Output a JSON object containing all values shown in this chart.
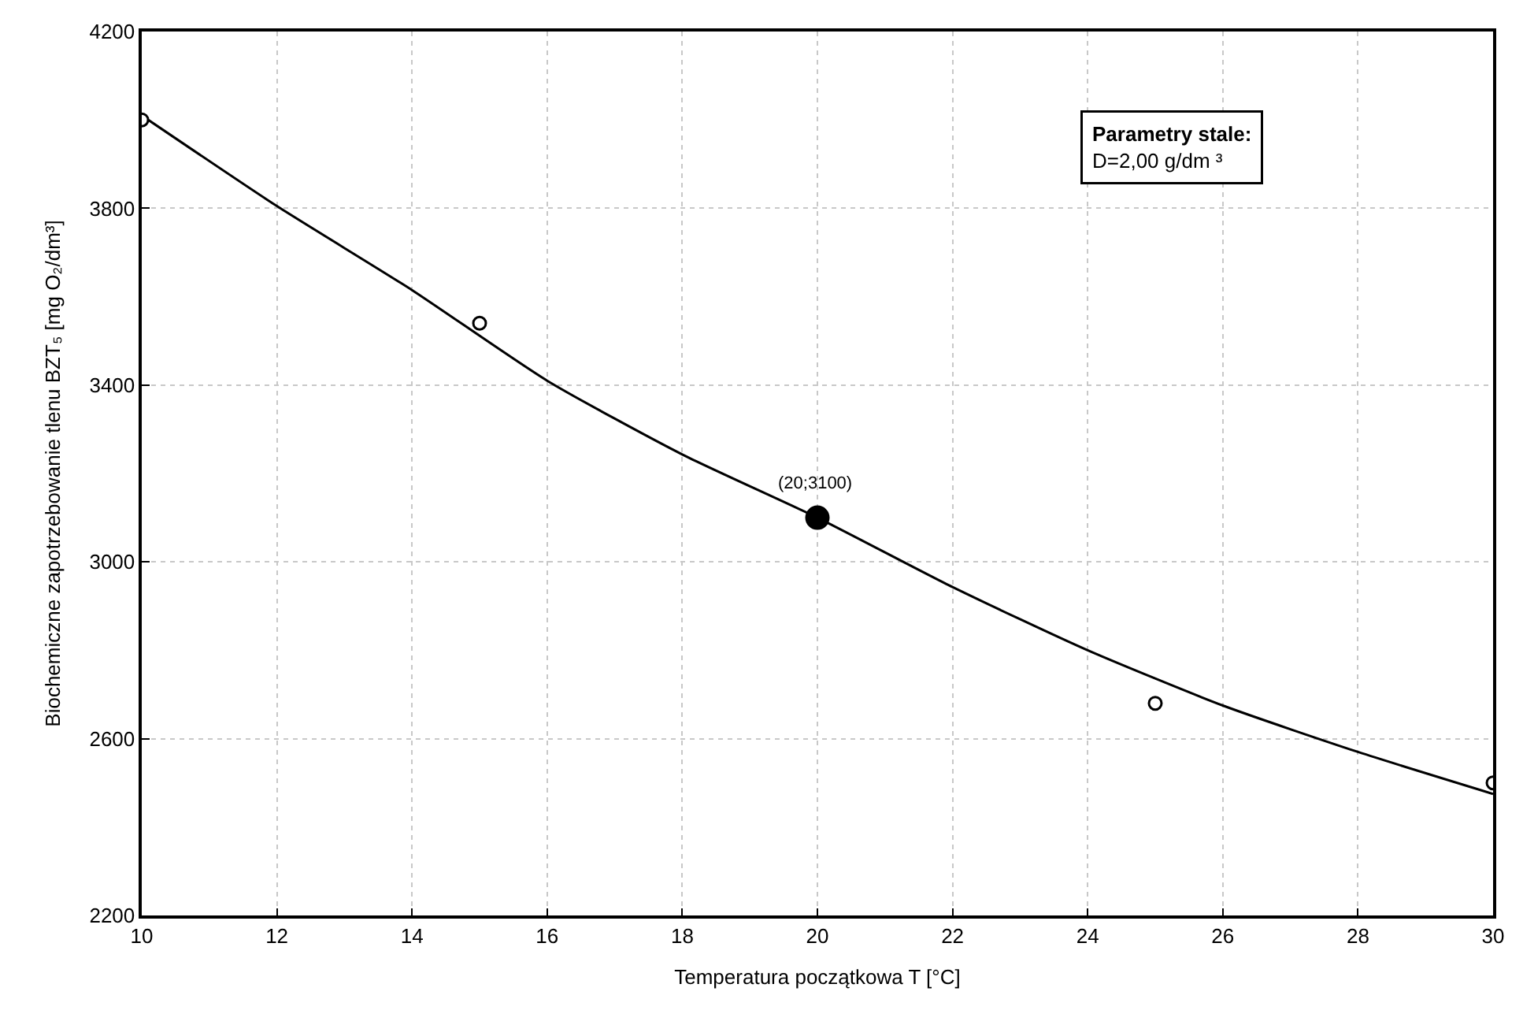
{
  "chart_data": {
    "type": "scatter",
    "xlabel": "Temperatura początkowa T [°C]",
    "ylabel": "Biochemiczne zapotrzebowanie tlenu BZT₅ [mg O₂/dm³]",
    "xlim": [
      10,
      30
    ],
    "xticks": [
      10,
      12,
      14,
      16,
      18,
      20,
      22,
      24,
      26,
      28,
      30
    ],
    "ylim": [
      2200,
      4200
    ],
    "yticks": [
      2200,
      2600,
      3000,
      3400,
      3800,
      4200
    ],
    "grid": true,
    "series": [
      {
        "type": "line",
        "color": "#000000",
        "x": [
          10,
          12,
          14,
          16,
          18,
          20,
          22,
          24,
          26,
          28,
          30
        ],
        "values": [
          4010,
          3805,
          3615,
          3410,
          3243,
          3100,
          2943,
          2800,
          2675,
          2570,
          2475
        ],
        "marker": "none",
        "line_style": "solid"
      },
      {
        "color": "#000000",
        "x": [
          10,
          15,
          25,
          30
        ],
        "values": [
          4000,
          3540,
          2680,
          2500
        ],
        "marker": "circle"
      },
      {
        "color": "#000000",
        "x": [
          20
        ],
        "values": [
          3100
        ],
        "marker": "circle"
      }
    ],
    "annotations": [
      {
        "text": "(20;3100)",
        "x": 20,
        "y": 3100
      },
      "Parametry stale:",
      "D=2,00 g/dm ³"
    ]
  }
}
